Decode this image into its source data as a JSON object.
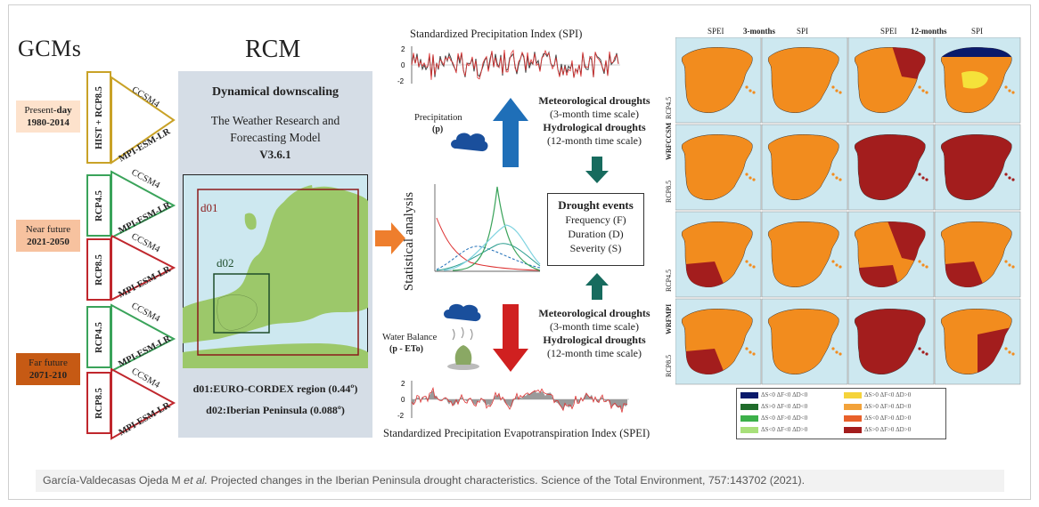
{
  "gcm": {
    "title": "GCMs",
    "periods": [
      {
        "label_a": "Present-",
        "label_b": "day",
        "years": "1980-2014",
        "color": "#fde2cc"
      },
      {
        "label_a": "Near future",
        "label_b": "",
        "years": "2021-2050",
        "color": "#f7c29f"
      },
      {
        "label_a": "Far future",
        "label_b": "",
        "years": "2071-210",
        "color": "#c65a14"
      }
    ],
    "scenarios": [
      {
        "label": "HIST + RCP8.5",
        "color": "#c9a227"
      },
      {
        "label": "RCP4.5",
        "color": "#3aa35a"
      },
      {
        "label": "RCP8.5",
        "color": "#c0272d"
      },
      {
        "label": "RCP4.5",
        "color": "#3aa35a"
      },
      {
        "label": "RCP8.5",
        "color": "#c0272d"
      }
    ],
    "model_a": "CCSM4",
    "model_b": "MPI-ESM-LR"
  },
  "rcm": {
    "title": "RCM",
    "heading": "Dynamical downscaling",
    "model_line1": "The Weather Research and",
    "model_line2": "Forecasting Model",
    "version": "V3.6.1",
    "d01_label": "d01",
    "d02_label": "d02",
    "d01_desc": "d01:EURO-CORDEX region (0.44º)",
    "d02_desc": "d02:Iberian Peninsula (0.088º)"
  },
  "center": {
    "spi_title": "Standardized Precipitation Index (SPI)",
    "spei_title": "Standardized Precipitation Evapotranspiration Index (SPEI)",
    "stat_label": "Statistical analysis",
    "precip_label": "Precipitation",
    "precip_sym": "(p)",
    "water_label": "Water Balance",
    "water_sym": "(p - ETo)",
    "met_top": "Meteorological droughts",
    "met_top_scale": "(3-month time scale)",
    "hyd_top": "Hydrological droughts",
    "hyd_top_scale": "(12-month time scale)",
    "met_bot": "Meteorological droughts",
    "met_bot_scale": "(3-month time scale)",
    "hyd_bot": "Hydrological droughts",
    "hyd_bot_scale": "(12-month time scale)",
    "events_title": "Drought events",
    "events_items": [
      "Frequency (F)",
      "Duration (D)",
      "Severity (S)"
    ],
    "axis_top": [
      "2",
      "0",
      "-2"
    ],
    "axis_bot": [
      "2",
      "0",
      "-2"
    ]
  },
  "maps": {
    "hdr_3": "3-months",
    "hdr_12": "12-months",
    "col_labels": [
      "SPEI",
      "SPI",
      "SPEI",
      "SPI"
    ],
    "row_group_a": "WRFCCSM",
    "row_group_b": "WRFMPI",
    "row_labels": [
      "RCP4.5",
      "RCP8.5",
      "RCP4.5",
      "RCP8.5"
    ],
    "colors": {
      "sea": "#cde8f0",
      "orange": "#f28c1e",
      "dark_red": "#a31d1d",
      "yellow": "#f5e23a",
      "navy": "#0a1a6b"
    },
    "legend": [
      {
        "text": "ΔS<0 ΔF<0 ΔD<0",
        "color": "#0a1a6b"
      },
      {
        "text": "ΔS>0 ΔF<0 ΔD<0",
        "color": "#1f6b2a"
      },
      {
        "text": "ΔS<0 ΔF>0 ΔD<0",
        "color": "#3cb04a"
      },
      {
        "text": "ΔS<0 ΔF<0 ΔD>0",
        "color": "#a8e07a"
      },
      {
        "text": "ΔS>0 ΔF<0 ΔD>0",
        "color": "#f5d33a"
      },
      {
        "text": "ΔS>0 ΔF>0 ΔD<0",
        "color": "#f2a23a"
      },
      {
        "text": "ΔS<0 ΔF>0 ΔD>0",
        "color": "#e8602a"
      },
      {
        "text": "ΔS>0 ΔF>0 ΔD>0",
        "color": "#a31d1d"
      }
    ]
  },
  "caption": {
    "author": "García-Valdecasas Ojeda M ",
    "etal": "et al.",
    "rest": " Projected changes in the Iberian Peninsula drought characteristics. Science of the Total Environment, 757:143702 (2021)."
  }
}
